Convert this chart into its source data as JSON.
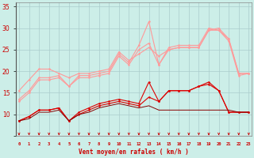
{
  "xlabel": "Vent moyen/en rafales ( km/h )",
  "bg_color": "#cceee8",
  "grid_color": "#aacccc",
  "x": [
    0,
    1,
    2,
    3,
    4,
    5,
    6,
    7,
    8,
    9,
    10,
    11,
    12,
    13,
    14,
    15,
    16,
    17,
    18,
    19,
    20,
    21,
    22,
    23
  ],
  "line_rafale1": [
    13.5,
    15.5,
    18.5,
    18.5,
    19.0,
    16.5,
    19.0,
    19.0,
    19.5,
    20.0,
    24.0,
    22.0,
    26.0,
    31.5,
    21.5,
    25.5,
    26.0,
    26.0,
    26.0,
    30.0,
    29.5,
    27.5,
    19.5,
    19.5
  ],
  "line_rafale2": [
    13.0,
    15.0,
    18.0,
    18.0,
    18.5,
    16.5,
    18.5,
    18.5,
    19.0,
    19.5,
    23.5,
    21.5,
    25.0,
    26.5,
    21.5,
    25.0,
    25.5,
    25.5,
    25.5,
    29.5,
    29.5,
    27.0,
    19.0,
    19.5
  ],
  "line_rafale3": [
    15.5,
    18.0,
    20.5,
    20.5,
    19.5,
    18.5,
    19.5,
    19.5,
    20.0,
    20.5,
    24.5,
    22.5,
    24.0,
    25.5,
    23.5,
    25.0,
    25.5,
    25.5,
    25.5,
    29.5,
    30.0,
    27.5,
    19.5,
    19.5
  ],
  "line_moy1": [
    8.5,
    9.5,
    11.0,
    11.0,
    11.5,
    8.5,
    10.5,
    11.5,
    12.5,
    13.0,
    13.5,
    13.0,
    12.5,
    17.5,
    13.0,
    15.5,
    15.5,
    15.5,
    16.5,
    17.5,
    15.5,
    10.5,
    10.5,
    10.5
  ],
  "line_moy2": [
    8.5,
    9.5,
    11.0,
    11.0,
    11.5,
    8.5,
    10.0,
    11.0,
    12.0,
    12.5,
    13.0,
    12.5,
    12.0,
    14.0,
    13.0,
    15.5,
    15.5,
    15.5,
    16.5,
    17.0,
    15.5,
    10.5,
    10.5,
    10.5
  ],
  "line_flat": [
    8.5,
    9.0,
    10.5,
    10.5,
    11.0,
    8.5,
    10.0,
    10.5,
    11.5,
    12.0,
    12.5,
    12.0,
    11.5,
    12.0,
    11.0,
    11.0,
    11.0,
    11.0,
    11.0,
    11.0,
    11.0,
    11.0,
    10.5,
    10.5
  ],
  "line_color_light": "#ff9999",
  "line_color_dark": "#dd0000",
  "line_color_flat": "#880000",
  "arrow_color": "#cc0000",
  "ylim": [
    5,
    36
  ],
  "yticks": [
    5,
    10,
    15,
    20,
    25,
    30,
    35
  ],
  "xlim": [
    -0.3,
    23.3
  ]
}
